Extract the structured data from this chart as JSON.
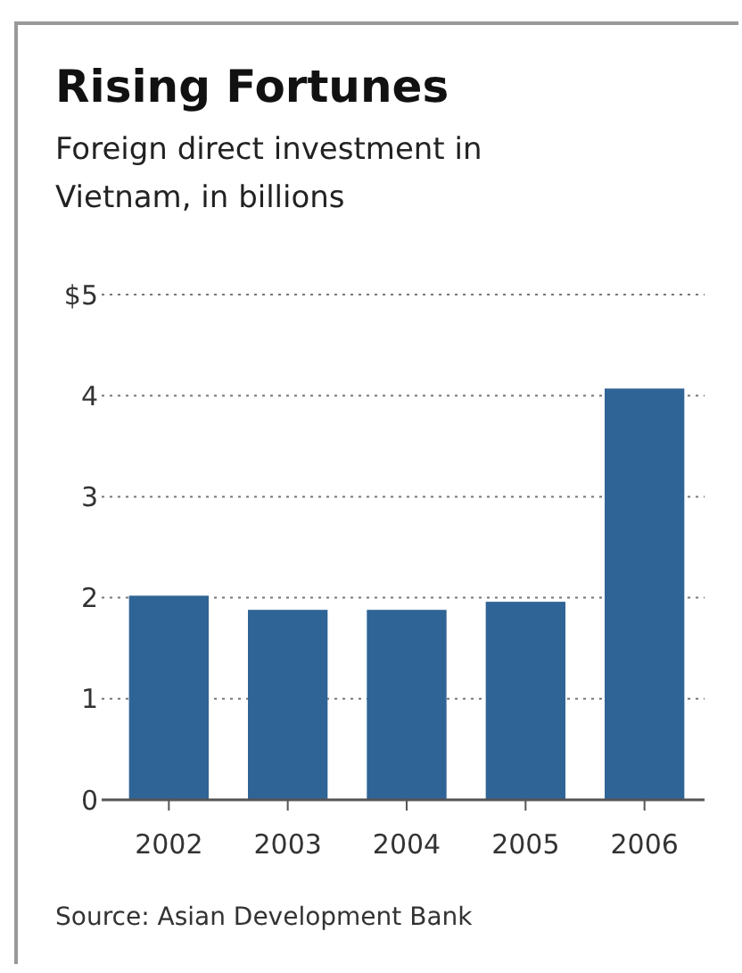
{
  "chart_data": {
    "type": "bar",
    "title": "Rising Fortunes",
    "subtitle": "Foreign direct investment in Vietnam, in billions",
    "categories": [
      "2002",
      "2003",
      "2004",
      "2005",
      "2006"
    ],
    "values": [
      2.02,
      1.88,
      1.88,
      1.96,
      4.07
    ],
    "color": "#2f6496",
    "ylim": [
      0,
      5
    ],
    "yticks": [
      0,
      1,
      2,
      3,
      4,
      {
        "value": 5,
        "label": "$5"
      }
    ],
    "grid": "y",
    "annotations": [
      "Source: Asian Development Bank"
    ]
  }
}
